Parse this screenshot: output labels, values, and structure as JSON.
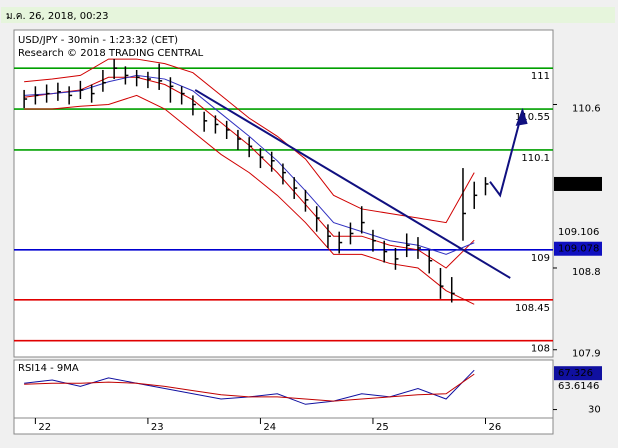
{
  "header": {
    "timestamp": "ม.ค. 26, 2018, 00:23"
  },
  "chart_data": {
    "type": "candlestick",
    "title": "USD/JPY - 30min - 1:23:32 (CET)",
    "subtitle": "Research © 2018 TRADING CENTRAL",
    "xlim": [
      21.81,
      26.6
    ],
    "xticks": [
      22,
      23,
      24,
      25,
      26
    ],
    "ylim": [
      107.82,
      111.42
    ],
    "yticks": [
      110.6,
      108.8,
      107.9
    ],
    "candles": {
      "color": "#000000",
      "x": [
        21.9,
        22.0,
        22.1,
        22.2,
        22.3,
        22.4,
        22.5,
        22.6,
        22.7,
        22.8,
        22.9,
        23.0,
        23.1,
        23.2,
        23.3,
        23.4,
        23.5,
        23.6,
        23.7,
        23.8,
        23.9,
        24.0,
        24.1,
        24.2,
        24.3,
        24.4,
        24.5,
        24.6,
        24.7,
        24.8,
        24.9,
        25.0,
        25.1,
        25.2,
        25.3,
        25.4,
        25.5,
        25.6,
        25.7,
        25.8,
        25.9,
        26.0
      ],
      "high": [
        110.76,
        110.8,
        110.82,
        110.84,
        110.8,
        110.86,
        110.82,
        110.98,
        111.1,
        111.02,
        110.98,
        110.96,
        111.05,
        110.9,
        110.8,
        110.7,
        110.52,
        110.48,
        110.42,
        110.32,
        110.24,
        110.12,
        110.08,
        109.95,
        109.8,
        109.66,
        109.48,
        109.28,
        109.2,
        109.3,
        109.48,
        109.22,
        109.1,
        109.02,
        109.18,
        109.14,
        109.0,
        108.8,
        108.7,
        109.9,
        109.75,
        109.8
      ],
      "low": [
        110.56,
        110.6,
        110.62,
        110.64,
        110.6,
        110.66,
        110.62,
        110.74,
        110.88,
        110.82,
        110.8,
        110.78,
        110.76,
        110.62,
        110.6,
        110.48,
        110.3,
        110.28,
        110.22,
        110.1,
        110.02,
        109.9,
        109.86,
        109.72,
        109.56,
        109.42,
        109.2,
        109.02,
        108.96,
        109.06,
        109.18,
        108.98,
        108.86,
        108.78,
        108.92,
        108.9,
        108.74,
        108.46,
        108.42,
        109.1,
        109.45,
        109.6
      ],
      "close": [
        110.66,
        110.7,
        110.72,
        110.74,
        110.7,
        110.76,
        110.72,
        110.84,
        111.0,
        110.92,
        110.9,
        110.88,
        110.86,
        110.8,
        110.72,
        110.6,
        110.42,
        110.38,
        110.32,
        110.22,
        110.14,
        110.02,
        109.98,
        109.85,
        109.68,
        109.55,
        109.35,
        109.15,
        109.08,
        109.18,
        109.3,
        109.1,
        108.98,
        108.9,
        109.05,
        109.02,
        108.88,
        108.6,
        108.52,
        109.4,
        109.6,
        109.725
      ]
    },
    "indicator_x": [
      21.9,
      22.15,
      22.4,
      22.65,
      22.9,
      23.15,
      23.4,
      23.65,
      23.9,
      24.15,
      24.4,
      24.65,
      24.9,
      25.15,
      25.4,
      25.65,
      25.9
    ],
    "series": [
      {
        "color": "#d00000",
        "values": [
          110.85,
          110.88,
          110.92,
          111.1,
          111.1,
          111.05,
          110.95,
          110.7,
          110.45,
          110.25,
          110.0,
          109.6,
          109.45,
          109.4,
          109.35,
          109.3,
          109.85
        ]
      },
      {
        "color": "#d00000",
        "values": [
          110.55,
          110.55,
          110.58,
          110.6,
          110.7,
          110.55,
          110.3,
          110.05,
          109.85,
          109.6,
          109.3,
          108.95,
          108.95,
          108.85,
          108.8,
          108.55,
          108.4
        ]
      },
      {
        "color": "#d00000",
        "values": [
          110.68,
          110.72,
          110.76,
          110.9,
          110.9,
          110.82,
          110.65,
          110.4,
          110.15,
          109.85,
          109.5,
          109.15,
          109.15,
          109.05,
          109.0,
          108.8,
          109.106
        ]
      },
      {
        "color": "#3030c0",
        "values": [
          110.7,
          110.72,
          110.75,
          110.85,
          110.92,
          110.88,
          110.75,
          110.5,
          110.25,
          109.98,
          109.65,
          109.3,
          109.2,
          109.1,
          109.05,
          108.95,
          109.078
        ]
      }
    ],
    "levels": [
      {
        "value": 111,
        "color": "#00a000"
      },
      {
        "value": 110.55,
        "color": "#00a000"
      },
      {
        "value": 110.1,
        "color": "#00a000"
      },
      {
        "value": 109,
        "color": "#0000d0"
      },
      {
        "value": 108.45,
        "color": "#e00000"
      },
      {
        "value": 108,
        "color": "#e00000"
      }
    ],
    "trendline": {
      "color": "#101080",
      "x": [
        23.42,
        26.22
      ],
      "y": [
        110.76,
        108.69
      ]
    },
    "forecast": {
      "color": "#101080",
      "x": [
        26.04,
        26.13,
        26.33
      ],
      "y": [
        109.75,
        109.6,
        110.54
      ]
    },
    "rsi": {
      "title": "RSI14 - 9MA",
      "ylim": [
        22,
        77
      ],
      "yticks": [
        30
      ],
      "series": [
        {
          "color": "#1010a0",
          "values": [
            55,
            58,
            52,
            60,
            55,
            50,
            45,
            40,
            42,
            45,
            35,
            38,
            45,
            42,
            50,
            40,
            67.326
          ]
        },
        {
          "color": "#c00000",
          "values": [
            54,
            55,
            55,
            56,
            55,
            52,
            48,
            44,
            42,
            42,
            40,
            38,
            40,
            42,
            44,
            45,
            63.6146
          ]
        }
      ]
    }
  }
}
